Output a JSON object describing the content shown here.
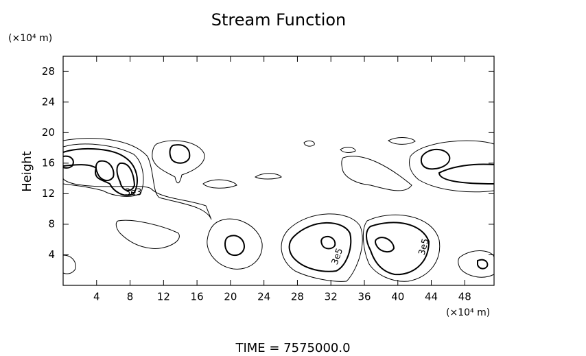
{
  "chart_data": {
    "type": "contour",
    "title": "Stream Function",
    "y_label": "Height",
    "y_unit": "(×10⁴ m)",
    "x_unit": "(×10⁴ m)",
    "footer": "TIME = 7575000.0",
    "annotations": [
      "3e3",
      "3e5",
      "3e5"
    ],
    "xlim": [
      0,
      51.5
    ],
    "xticks": [
      4,
      8,
      12,
      16,
      20,
      24,
      28,
      32,
      36,
      40,
      44,
      48
    ],
    "ylim": [
      0,
      30
    ],
    "yticks": [
      4,
      8,
      12,
      16,
      20,
      24,
      28
    ]
  }
}
